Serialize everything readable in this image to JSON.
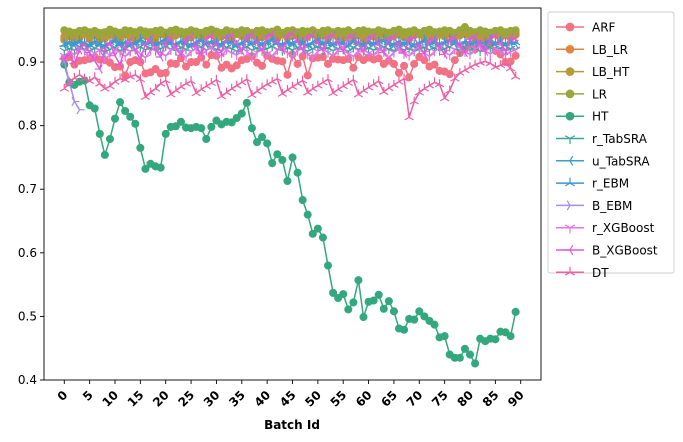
{
  "chart_data": {
    "type": "line",
    "title": "",
    "xlabel": "Batch Id",
    "ylabel": "",
    "xlim": [
      -4,
      94
    ],
    "ylim": [
      0.4,
      0.985
    ],
    "xticks": [
      0,
      5,
      10,
      15,
      20,
      25,
      30,
      35,
      40,
      45,
      50,
      55,
      60,
      65,
      70,
      75,
      80,
      85,
      90
    ],
    "yticks": [
      0.4,
      0.5,
      0.6,
      0.7,
      0.8,
      0.9
    ],
    "ytick_labels": [
      "0.4",
      "0.5",
      "0.6",
      "0.7",
      "0.8",
      "0.9"
    ],
    "grid": false,
    "legend_position": "outside-right-top",
    "series": [
      {
        "name": "ARF",
        "color": "#f27182",
        "marker": "circle",
        "values": [
          0.906,
          0.908,
          0.896,
          0.902,
          0.903,
          0.905,
          0.908,
          0.904,
          0.903,
          0.899,
          0.892,
          0.893,
          0.879,
          0.9,
          0.903,
          0.9,
          0.882,
          0.884,
          0.889,
          0.882,
          0.883,
          0.898,
          0.897,
          0.906,
          0.893,
          0.9,
          0.9,
          0.907,
          0.896,
          0.911,
          0.91,
          0.891,
          0.896,
          0.89,
          0.895,
          0.903,
          0.905,
          0.909,
          0.899,
          0.894,
          0.91,
          0.905,
          0.902,
          0.901,
          0.88,
          0.912,
          0.897,
          0.909,
          0.879,
          0.906,
          0.907,
          0.908,
          0.897,
          0.905,
          0.904,
          0.903,
          0.905,
          0.891,
          0.908,
          0.903,
          0.907,
          0.904,
          0.906,
          0.897,
          0.902,
          0.897,
          0.883,
          0.894,
          0.876,
          0.897,
          0.908,
          0.903,
          0.893,
          0.896,
          0.886,
          0.885,
          0.881,
          0.903,
          0.914,
          0.92,
          0.927,
          0.92,
          0.932,
          0.926,
          0.93,
          0.918,
          0.912,
          0.9,
          0.901,
          0.91
        ]
      },
      {
        "name": "LB_LR",
        "color": "#e08640",
        "marker": "circle",
        "values": [
          0.94,
          0.944,
          0.941,
          0.944,
          0.946,
          0.943,
          0.944,
          0.941,
          0.942,
          0.944,
          0.946,
          0.942,
          0.944,
          0.945,
          0.942,
          0.943,
          0.945,
          0.944,
          0.942,
          0.944,
          0.946,
          0.943,
          0.945,
          0.944,
          0.942,
          0.945,
          0.944,
          0.943,
          0.946,
          0.944,
          0.945,
          0.943,
          0.945,
          0.944,
          0.946,
          0.944,
          0.943,
          0.945,
          0.944,
          0.942,
          0.945,
          0.944,
          0.946,
          0.943,
          0.944,
          0.945,
          0.943,
          0.944,
          0.946,
          0.944,
          0.945,
          0.943,
          0.944,
          0.946,
          0.944,
          0.945,
          0.943,
          0.944,
          0.945,
          0.944,
          0.943,
          0.945,
          0.944,
          0.946,
          0.943,
          0.944,
          0.945,
          0.944,
          0.943,
          0.945,
          0.944,
          0.946,
          0.944,
          0.943,
          0.945,
          0.944,
          0.943,
          0.945,
          0.944,
          0.946,
          0.944,
          0.945,
          0.943,
          0.944,
          0.946,
          0.944,
          0.945,
          0.943,
          0.944,
          0.945
        ]
      },
      {
        "name": "LB_HT",
        "color": "#b59a35",
        "marker": "circle",
        "values": [
          0.935,
          0.941,
          0.933,
          0.938,
          0.944,
          0.936,
          0.942,
          0.935,
          0.937,
          0.943,
          0.94,
          0.936,
          0.944,
          0.939,
          0.935,
          0.942,
          0.941,
          0.938,
          0.936,
          0.944,
          0.941,
          0.937,
          0.942,
          0.945,
          0.936,
          0.939,
          0.943,
          0.938,
          0.941,
          0.945,
          0.937,
          0.94,
          0.942,
          0.936,
          0.944,
          0.941,
          0.938,
          0.943,
          0.937,
          0.939,
          0.945,
          0.941,
          0.937,
          0.944,
          0.938,
          0.941,
          0.943,
          0.936,
          0.94,
          0.945,
          0.938,
          0.942,
          0.937,
          0.943,
          0.94,
          0.938,
          0.944,
          0.939,
          0.942,
          0.936,
          0.943,
          0.94,
          0.938,
          0.944,
          0.937,
          0.941,
          0.943,
          0.939,
          0.936,
          0.942,
          0.944,
          0.938,
          0.941,
          0.937,
          0.943,
          0.94,
          0.945,
          0.938,
          0.942,
          0.944,
          0.941,
          0.938,
          0.943,
          0.937,
          0.941,
          0.944,
          0.939,
          0.942,
          0.938,
          0.943
        ]
      },
      {
        "name": "LR",
        "color": "#98a63a",
        "marker": "circle",
        "values": [
          0.95,
          0.948,
          0.946,
          0.949,
          0.95,
          0.947,
          0.949,
          0.946,
          0.947,
          0.951,
          0.948,
          0.946,
          0.95,
          0.949,
          0.947,
          0.95,
          0.948,
          0.947,
          0.949,
          0.95,
          0.946,
          0.949,
          0.951,
          0.948,
          0.947,
          0.95,
          0.948,
          0.946,
          0.949,
          0.951,
          0.948,
          0.946,
          0.95,
          0.948,
          0.947,
          0.95,
          0.949,
          0.946,
          0.949,
          0.95,
          0.947,
          0.948,
          0.951,
          0.946,
          0.949,
          0.95,
          0.947,
          0.949,
          0.948,
          0.95,
          0.946,
          0.949,
          0.95,
          0.947,
          0.949,
          0.948,
          0.95,
          0.946,
          0.949,
          0.95,
          0.948,
          0.947,
          0.95,
          0.948,
          0.946,
          0.949,
          0.951,
          0.947,
          0.948,
          0.95,
          0.946,
          0.949,
          0.951,
          0.947,
          0.948,
          0.95,
          0.949,
          0.946,
          0.95,
          0.955,
          0.949,
          0.947,
          0.95,
          0.948,
          0.946,
          0.949,
          0.95,
          0.947,
          0.949,
          0.95
        ]
      },
      {
        "name": "HT",
        "color": "#33a87e",
        "marker": "circle",
        "values": [
          0.896,
          0.868,
          0.864,
          0.869,
          0.871,
          0.832,
          0.827,
          0.787,
          0.754,
          0.779,
          0.811,
          0.837,
          0.823,
          0.814,
          0.803,
          0.765,
          0.732,
          0.74,
          0.736,
          0.734,
          0.787,
          0.798,
          0.799,
          0.806,
          0.797,
          0.796,
          0.798,
          0.796,
          0.779,
          0.798,
          0.808,
          0.802,
          0.806,
          0.805,
          0.812,
          0.819,
          0.836,
          0.796,
          0.774,
          0.782,
          0.772,
          0.741,
          0.755,
          0.746,
          0.713,
          0.75,
          0.726,
          0.683,
          0.66,
          0.63,
          0.638,
          0.624,
          0.58,
          0.537,
          0.529,
          0.535,
          0.511,
          0.522,
          0.557,
          0.499,
          0.523,
          0.525,
          0.534,
          0.512,
          0.524,
          0.508,
          0.481,
          0.479,
          0.496,
          0.495,
          0.508,
          0.5,
          0.493,
          0.487,
          0.467,
          0.469,
          0.44,
          0.435,
          0.435,
          0.449,
          0.44,
          0.426,
          0.465,
          0.461,
          0.465,
          0.464,
          0.476,
          0.475,
          0.469,
          0.507
        ]
      },
      {
        "name": "r_TabSRA",
        "color": "#35a897",
        "marker": "tri_down",
        "values": [
          0.918,
          0.921,
          0.919,
          0.924,
          0.92,
          0.917,
          0.922,
          0.919,
          0.916,
          0.92,
          0.923,
          0.918,
          0.921,
          0.917,
          0.92,
          0.924,
          0.919,
          0.922,
          0.918,
          0.921,
          0.925,
          0.92,
          0.918,
          0.923,
          0.92,
          0.917,
          0.921,
          0.924,
          0.919,
          0.922,
          0.92,
          0.918,
          0.923,
          0.921,
          0.917,
          0.92,
          0.924,
          0.919,
          0.922,
          0.918,
          0.921,
          0.925,
          0.92,
          0.918,
          0.922,
          0.919,
          0.923,
          0.92,
          0.917,
          0.921,
          0.924,
          0.919,
          0.922,
          0.918,
          0.921,
          0.92,
          0.917,
          0.923,
          0.92,
          0.918,
          0.922,
          0.919,
          0.921,
          0.924,
          0.92,
          0.918,
          0.922,
          0.919,
          0.921,
          0.917,
          0.92,
          0.923,
          0.919,
          0.922,
          0.918,
          0.921,
          0.924,
          0.92,
          0.918,
          0.922,
          0.919,
          0.921,
          0.917,
          0.92,
          0.923,
          0.919,
          0.922,
          0.918,
          0.921,
          0.92
        ]
      },
      {
        "name": "u_TabSRA",
        "color": "#3a9fc0",
        "marker": "tri_left",
        "values": [
          0.925,
          0.929,
          0.926,
          0.931,
          0.927,
          0.924,
          0.93,
          0.926,
          0.923,
          0.928,
          0.932,
          0.926,
          0.929,
          0.925,
          0.928,
          0.933,
          0.927,
          0.93,
          0.926,
          0.929,
          0.934,
          0.928,
          0.925,
          0.931,
          0.928,
          0.924,
          0.929,
          0.933,
          0.927,
          0.93,
          0.928,
          0.925,
          0.932,
          0.929,
          0.924,
          0.928,
          0.933,
          0.927,
          0.93,
          0.926,
          0.929,
          0.934,
          0.928,
          0.925,
          0.93,
          0.927,
          0.932,
          0.928,
          0.924,
          0.929,
          0.933,
          0.927,
          0.93,
          0.926,
          0.929,
          0.928,
          0.924,
          0.932,
          0.928,
          0.925,
          0.93,
          0.927,
          0.929,
          0.933,
          0.928,
          0.925,
          0.93,
          0.927,
          0.929,
          0.924,
          0.928,
          0.932,
          0.927,
          0.93,
          0.926,
          0.929,
          0.933,
          0.928,
          0.925,
          0.93,
          0.927,
          0.929,
          0.924,
          0.928,
          0.932,
          0.927,
          0.93,
          0.926,
          0.929,
          0.928
        ]
      },
      {
        "name": "r_EBM",
        "color": "#3d95d9",
        "marker": "tri_up",
        "values": [
          0.928,
          0.932,
          0.929,
          0.934,
          0.93,
          0.927,
          0.933,
          0.929,
          0.926,
          0.931,
          0.935,
          0.929,
          0.932,
          0.928,
          0.931,
          0.936,
          0.93,
          0.933,
          0.929,
          0.932,
          0.937,
          0.931,
          0.928,
          0.934,
          0.931,
          0.927,
          0.932,
          0.936,
          0.93,
          0.933,
          0.931,
          0.928,
          0.935,
          0.932,
          0.927,
          0.931,
          0.936,
          0.93,
          0.933,
          0.929,
          0.932,
          0.937,
          0.931,
          0.928,
          0.933,
          0.93,
          0.935,
          0.931,
          0.927,
          0.932,
          0.936,
          0.93,
          0.933,
          0.929,
          0.932,
          0.931,
          0.927,
          0.935,
          0.931,
          0.928,
          0.933,
          0.93,
          0.932,
          0.936,
          0.931,
          0.928,
          0.933,
          0.93,
          0.932,
          0.927,
          0.931,
          0.935,
          0.93,
          0.933,
          0.929,
          0.932,
          0.936,
          0.931,
          0.928,
          0.933,
          0.93,
          0.932,
          0.927,
          0.931,
          0.935,
          0.93,
          0.933,
          0.929,
          0.932,
          0.931
        ]
      },
      {
        "name": "B_EBM",
        "color": "#a98be8",
        "marker": "tri_right",
        "values": [
          0.902,
          0.868,
          0.838,
          0.825
        ]
      },
      {
        "name": "r_XGBoost",
        "color": "#e374e8",
        "marker": "tri_down",
        "values": [
          0.91,
          0.916,
          0.912,
          0.922,
          0.918,
          0.908,
          0.914,
          0.919,
          0.905,
          0.911,
          0.92,
          0.915,
          0.909,
          0.917,
          0.921,
          0.913,
          0.907,
          0.918,
          0.922,
          0.914,
          0.91,
          0.919,
          0.923,
          0.915,
          0.908,
          0.917,
          0.921,
          0.912,
          0.918,
          0.924,
          0.916,
          0.909,
          0.92,
          0.914,
          0.911,
          0.922,
          0.917,
          0.908,
          0.915,
          0.921,
          0.913,
          0.91,
          0.919,
          0.923,
          0.914,
          0.909,
          0.918,
          0.921,
          0.912,
          0.908,
          0.917,
          0.922,
          0.915,
          0.91,
          0.919,
          0.924,
          0.913,
          0.909,
          0.918,
          0.921,
          0.914,
          0.911,
          0.92,
          0.916,
          0.908,
          0.915,
          0.921,
          0.913,
          0.91,
          0.919,
          0.923,
          0.914,
          0.909,
          0.917,
          0.922,
          0.915,
          0.911,
          0.92,
          0.924,
          0.916,
          0.912,
          0.921,
          0.925,
          0.917,
          0.913,
          0.92,
          0.918,
          0.911,
          0.916,
          0.919
        ]
      },
      {
        "name": "B_XGBoost",
        "color": "#e059d8",
        "marker": "tri_left",
        "values": [
          0.905,
          0.912,
          0.898,
          0.919,
          0.928,
          0.915,
          0.902,
          0.889,
          0.921,
          0.93,
          0.91,
          0.896,
          0.925,
          0.933,
          0.918,
          0.905,
          0.928,
          0.936,
          0.92,
          0.908,
          0.931,
          0.938,
          0.922,
          0.911,
          0.934,
          0.94,
          0.925,
          0.913,
          0.936,
          0.941,
          0.927,
          0.915,
          0.938,
          0.942,
          0.929,
          0.917,
          0.939,
          0.943,
          0.93,
          0.918,
          0.94,
          0.944,
          0.931,
          0.919,
          0.941,
          0.945,
          0.932,
          0.92,
          0.94,
          0.943,
          0.93,
          0.919,
          0.939,
          0.942,
          0.929,
          0.917,
          0.938,
          0.941,
          0.928,
          0.916,
          0.937,
          0.94,
          0.927,
          0.915,
          0.936,
          0.939,
          0.926,
          0.914,
          0.935,
          0.938,
          0.925,
          0.913,
          0.934,
          0.937,
          0.924,
          0.912,
          0.935,
          0.939,
          0.926,
          0.915,
          0.936,
          0.94,
          0.928,
          0.917,
          0.937,
          0.941,
          0.929,
          0.918,
          0.938,
          0.936
        ]
      },
      {
        "name": "DT",
        "color": "#ee5fa3",
        "marker": "tri_up",
        "values": [
          0.858,
          0.868,
          0.875,
          0.88,
          0.874,
          0.87,
          0.876,
          0.866,
          0.858,
          0.862,
          0.869,
          0.874,
          0.872,
          0.877,
          0.88,
          0.873,
          0.845,
          0.852,
          0.858,
          0.866,
          0.871,
          0.849,
          0.855,
          0.861,
          0.866,
          0.87,
          0.851,
          0.857,
          0.862,
          0.867,
          0.872,
          0.846,
          0.852,
          0.858,
          0.863,
          0.868,
          0.873,
          0.848,
          0.854,
          0.86,
          0.865,
          0.869,
          0.874,
          0.85,
          0.856,
          0.861,
          0.866,
          0.871,
          0.852,
          0.858,
          0.863,
          0.868,
          0.873,
          0.851,
          0.857,
          0.862,
          0.867,
          0.872,
          0.849,
          0.855,
          0.86,
          0.865,
          0.87,
          0.853,
          0.859,
          0.864,
          0.869,
          0.874,
          0.813,
          0.838,
          0.852,
          0.858,
          0.863,
          0.868,
          0.865,
          0.843,
          0.855,
          0.874,
          0.883,
          0.887,
          0.892,
          0.896,
          0.899,
          0.901,
          0.898,
          0.892,
          0.895,
          0.898,
          0.89,
          0.877
        ]
      }
    ]
  }
}
